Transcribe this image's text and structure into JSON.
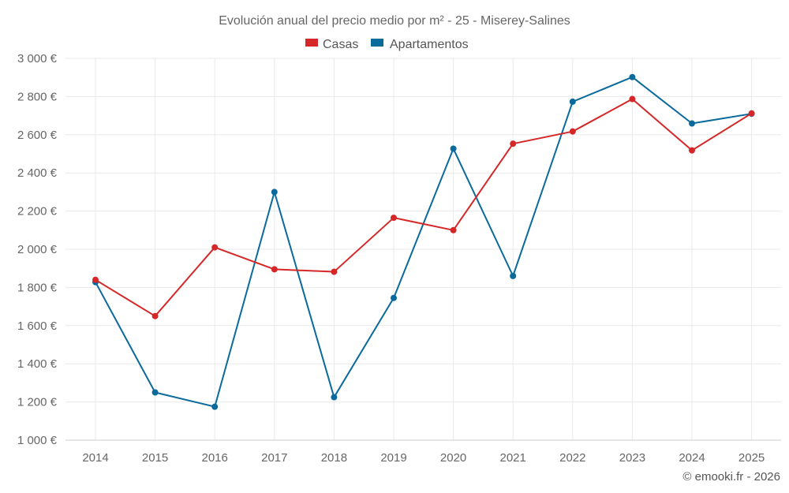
{
  "chart_data": {
    "type": "line",
    "title": "Evolución anual del precio medio por m² - 25 - Miserey-Salines",
    "xlabel": "",
    "ylabel": "",
    "categories": [
      "2014",
      "2015",
      "2016",
      "2017",
      "2018",
      "2019",
      "2020",
      "2021",
      "2022",
      "2023",
      "2024",
      "2025"
    ],
    "ylim": [
      1000,
      3000
    ],
    "yticks": [
      1000,
      1200,
      1400,
      1600,
      1800,
      2000,
      2200,
      2400,
      2600,
      2800,
      3000
    ],
    "ytick_labels": [
      "1 000 €",
      "1 200 €",
      "1 400 €",
      "1 600 €",
      "1 800 €",
      "2 000 €",
      "2 200 €",
      "2 400 €",
      "2 600 €",
      "2 800 €",
      "3 000 €"
    ],
    "grid": true,
    "legend_position": "top-center",
    "series": [
      {
        "name": "Casas",
        "color": "#d62728",
        "values": [
          1840,
          1650,
          2010,
          1895,
          1882,
          2165,
          2100,
          2553,
          2617,
          2787,
          2518,
          2712
        ]
      },
      {
        "name": "Apartamentos",
        "color": "#0a6a9c",
        "values": [
          1828,
          1250,
          1175,
          2300,
          1225,
          1745,
          2527,
          1860,
          2773,
          2902,
          2659,
          2710
        ]
      }
    ]
  },
  "credit": "© emooki.fr - 2026"
}
